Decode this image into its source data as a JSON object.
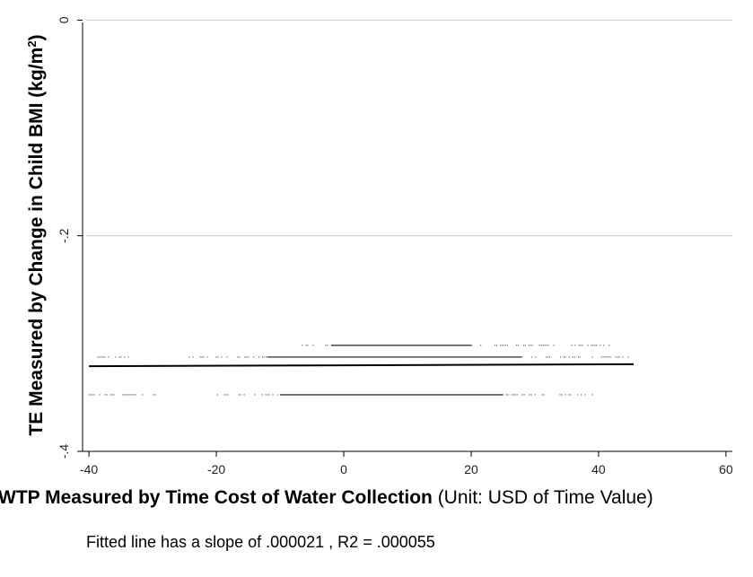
{
  "chart_data": {
    "type": "scatter",
    "xlabel_bold": "WTP Measured by Time Cost of Water Collection",
    "xlabel_rest": " (Unit: USD of Time Value)",
    "ylabel_main": "TE Measured by Change in Child BMI (kg/m",
    "ylabel_sup": "2",
    "ylabel_close": ")",
    "xlim": [
      -41,
      61
    ],
    "ylim": [
      -0.4,
      0.002
    ],
    "xticks": [
      -40,
      -20,
      0,
      20,
      40,
      60
    ],
    "yticks": [
      0,
      -0.2,
      -0.4
    ],
    "xtick_labels": [
      "-40",
      "-20",
      "0",
      "20",
      "40",
      "60"
    ],
    "ytick_labels": [
      "0",
      "-.2",
      "-.4"
    ],
    "grid": true,
    "point_bands": [
      {
        "y": -0.3016,
        "x_ranges": [
          [
            -6.5,
            42.0
          ]
        ],
        "dense_range": [
          -2.0,
          20.0
        ]
      },
      {
        "y": -0.3125,
        "x_ranges": [
          [
            -40.0,
            -33.0
          ],
          [
            -24.5,
            45.5
          ]
        ],
        "dense_range": [
          -12.0,
          28.0
        ]
      },
      {
        "y": -0.3475,
        "x_ranges": [
          [
            -40.0,
            -28.5
          ],
          [
            -21.5,
            39.5
          ]
        ],
        "dense_range": [
          -10.0,
          25.0
        ]
      }
    ],
    "fitted_line": {
      "x": [
        -40,
        45.5
      ],
      "y": [
        -0.321,
        -0.3192
      ]
    },
    "note": "Fitted line has a slope of .000021 , R2 = .000055"
  }
}
